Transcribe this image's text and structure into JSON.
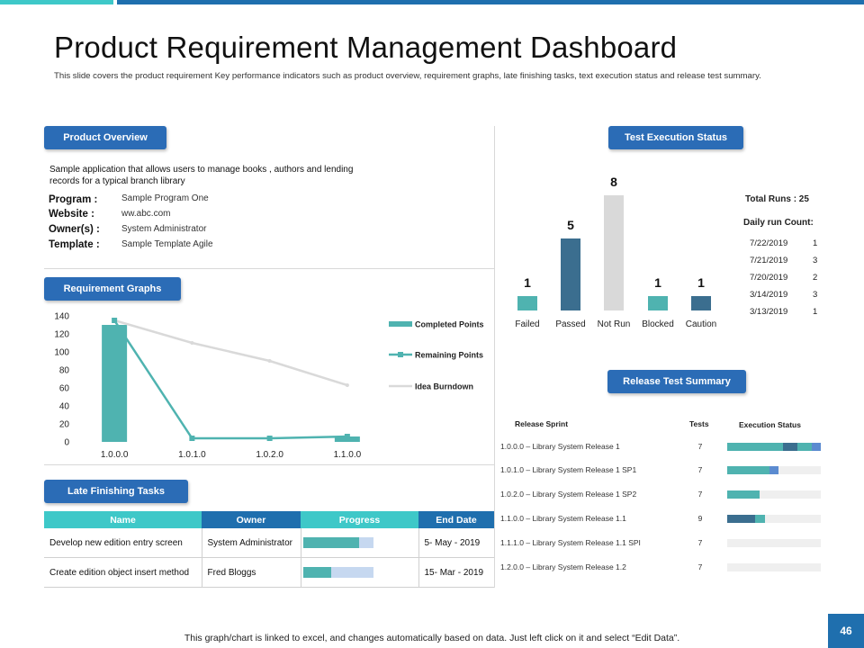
{
  "page": {
    "title": "Product Requirement Management Dashboard",
    "subtitle": "This slide covers the product requirement Key performance indicators such as product overview, requirement graphs, late finishing tasks, text execution status and release test summary.",
    "footer_note": "This graph/chart is linked to excel, and changes automatically based on data. Just left click on it and select “Edit Data”.",
    "page_number": "46"
  },
  "colors": {
    "teal": "#4fb3b0",
    "blue": "#2b6cb6",
    "dark_blue": "#3b6e8f",
    "gray": "#d9d9d9",
    "header_blue": "#1f6fae",
    "header_teal": "#3ec8c8"
  },
  "product_overview": {
    "heading": "Product Overview",
    "description": "Sample application that allows users to manage books , authors and lending records for a typical branch library",
    "fields": [
      {
        "label": "Program :",
        "value": "Sample Program One"
      },
      {
        "label": "Website :",
        "value": "ww.abc.com"
      },
      {
        "label": "Owner(s) :",
        "value": "System Administrator"
      },
      {
        "label": "Template :",
        "value": "Sample Template Agile"
      }
    ]
  },
  "requirement_graphs": {
    "heading": "Requirement Graphs",
    "chart_data": {
      "type": "bar",
      "categories": [
        "1.0.0.0",
        "1.0.1.0",
        "1.0.2.0",
        "1.1.0.0"
      ],
      "y_ticks": [
        0,
        20,
        40,
        60,
        80,
        100,
        120,
        140
      ],
      "ylim": [
        0,
        140
      ],
      "legend_position": "right",
      "series": [
        {
          "name": "Completed Points",
          "kind": "bar",
          "color": "#4fb3b0",
          "values": [
            130,
            0,
            0,
            6
          ]
        },
        {
          "name": "Remaining Points",
          "kind": "line-marker",
          "color": "#4fb3b0",
          "values": [
            135,
            4,
            4,
            6
          ]
        },
        {
          "name": "Idea Burndown",
          "kind": "line",
          "color": "#d9d9d9",
          "values": [
            135,
            110,
            90,
            63
          ]
        }
      ]
    }
  },
  "late_finishing_tasks": {
    "heading": "Late Finishing Tasks",
    "columns": [
      "Name",
      "Owner",
      "Progress",
      "End Date"
    ],
    "rows": [
      {
        "name": "Develop new edition entry screen",
        "owner": "System Administrator",
        "progress": 0.8,
        "end_date": "5- May - 2019"
      },
      {
        "name": "Create edition object insert method",
        "owner": "Fred Bloggs",
        "progress": 0.4,
        "end_date": "15- Mar - 2019"
      }
    ]
  },
  "test_execution_status": {
    "heading": "Test Execution Status",
    "chart_data": {
      "type": "bar",
      "categories": [
        "Failed",
        "Passed",
        "Not Run",
        "Blocked",
        "Caution"
      ],
      "values": [
        1,
        5,
        8,
        1,
        1
      ],
      "colors": [
        "#4fb3b0",
        "#3b6e8f",
        "#d9d9d9",
        "#4fb3b0",
        "#3b6e8f"
      ],
      "ylim": [
        0,
        8
      ]
    },
    "total_runs": "Total Runs : 25",
    "daily_heading": "Daily run Count:",
    "daily": [
      {
        "date": "7/22/2019",
        "count": "1"
      },
      {
        "date": "7/21/2019",
        "count": "3"
      },
      {
        "date": "7/20/2019",
        "count": "2"
      },
      {
        "date": "3/14/2019",
        "count": "3"
      },
      {
        "date": "3/13/2019",
        "count": "1"
      }
    ]
  },
  "release_test_summary": {
    "heading": "Release Test Summary",
    "columns": [
      "Release Sprint",
      "Tests",
      "Execution Status"
    ],
    "rows": [
      {
        "sprint": "1.0.0.0 – Library System Release 1",
        "tests": "7",
        "status": [
          {
            "value": 0.6,
            "color": "#4fb3b0"
          },
          {
            "value": 0.15,
            "color": "#3b6e8f"
          },
          {
            "value": 0.15,
            "color": "#4fb3b0"
          },
          {
            "value": 0.1,
            "color": "#5b8bd0"
          }
        ]
      },
      {
        "sprint": "1.0.1.0 – Library System Release 1 SP1",
        "tests": "7",
        "status": [
          {
            "value": 0.45,
            "color": "#4fb3b0"
          },
          {
            "value": 0.1,
            "color": "#5b8bd0"
          }
        ]
      },
      {
        "sprint": "1.0.2.0 – Library System Release 1 SP2",
        "tests": "7",
        "status": [
          {
            "value": 0.35,
            "color": "#4fb3b0"
          }
        ]
      },
      {
        "sprint": "1.1.0.0 – Library System Release 1.1",
        "tests": "9",
        "status": [
          {
            "value": 0.3,
            "color": "#3b6e8f"
          },
          {
            "value": 0.1,
            "color": "#4fb3b0"
          }
        ]
      },
      {
        "sprint": "1.1.1.0 – Library System Release 1.1 SPI",
        "tests": "7",
        "status": []
      },
      {
        "sprint": "1.2.0.0 – Library System Release 1.2",
        "tests": "7",
        "status": []
      }
    ]
  }
}
